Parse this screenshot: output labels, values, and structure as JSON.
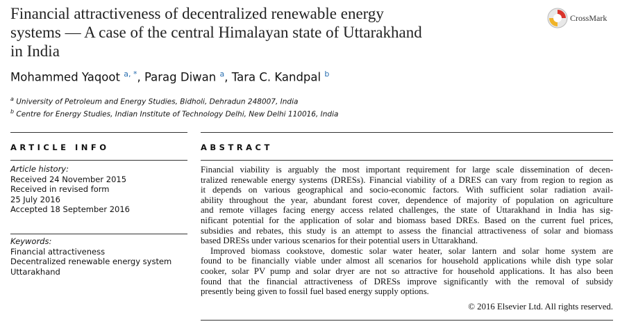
{
  "header": {
    "title_lines": [
      "Financial attractiveness of decentralized renewable energy",
      "systems — A case of the central Himalayan state of Uttarakhand",
      "in India"
    ],
    "crossmark": "CrossMark",
    "authors": [
      {
        "name": "Mohammed Yaqoot",
        "sup": "a, *"
      },
      {
        "name": "Parag Diwan",
        "sup": "a"
      },
      {
        "name": "Tara C. Kandpal",
        "sup": "b"
      }
    ],
    "affiliations": [
      {
        "sup": "a",
        "text": "University of Petroleum and Energy Studies, Bidholi, Dehradun 248007, India"
      },
      {
        "sup": "b",
        "text": "Centre for Energy Studies, Indian Institute of Technology Delhi, New Delhi 110016, India"
      }
    ]
  },
  "article_info": {
    "heading": "ARTICLE INFO",
    "history_label": "Article history:",
    "history": [
      "Received 24 November 2015",
      "Received in revised form",
      "25 July 2016",
      "Accepted 18 September 2016"
    ],
    "keywords_label": "Keywords:",
    "keywords": [
      "Financial attractiveness",
      "Decentralized renewable energy system",
      "Uttarakhand"
    ]
  },
  "abstract": {
    "heading": "ABSTRACT",
    "paragraphs": [
      [
        "Financial viability is arguably the most important requirement for large scale dissemination of decen-",
        "tralized renewable energy systems (DRESs). Financial viability of a DRES can vary from region to region as",
        "it depends on various geographical and socio-economic factors. With sufficient solar radiation avail-",
        "ability throughout the year, abundant forest cover, dependence of majority of population on agriculture",
        "and remote villages facing energy access related challenges, the state of Uttarakhand in India has sig-",
        "nificant potential for the application of solar and biomass based DREs. Based on the current fuel prices,",
        "subsidies and rebates, this study is an attempt to assess the financial attractiveness of solar and biomass",
        "based DRESs under various scenarios for their potential users in Uttarakhand."
      ],
      [
        "Improved biomass cookstove, domestic solar water heater, solar lantern and solar home system are",
        "found to be financially viable under almost all scenarios for household applications while dish type solar",
        "cooker, solar PV pump and solar dryer are not so attractive for household applications. It has also been",
        "found that the financial attractiveness of DRESs improve significantly with the removal of subsidy",
        "presently being given to fossil fuel based energy supply options."
      ]
    ],
    "copyright": "© 2016 Elsevier Ltd. All rights reserved."
  }
}
